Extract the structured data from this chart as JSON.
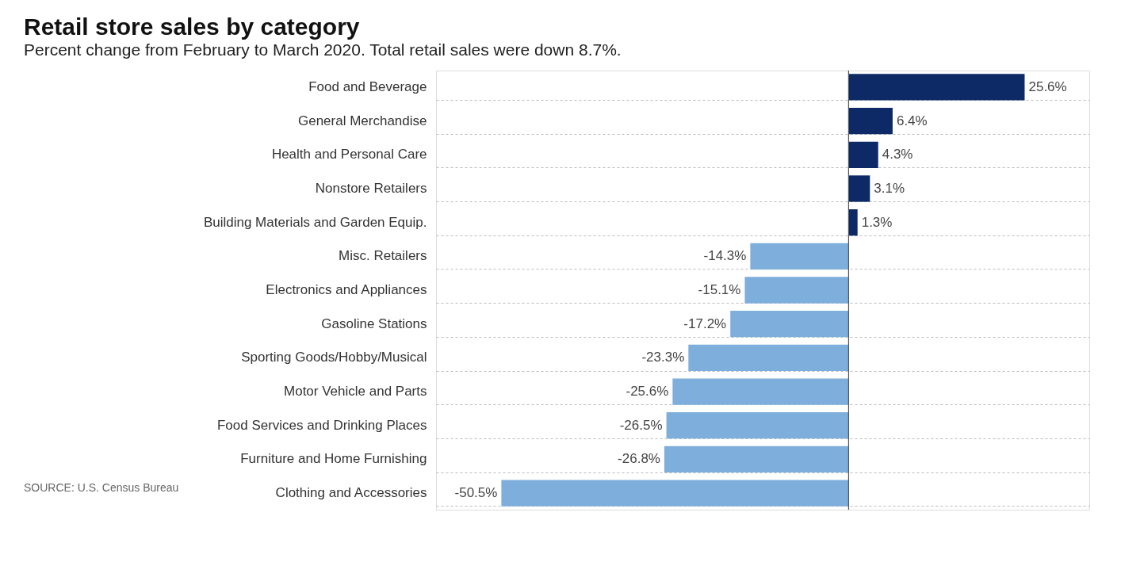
{
  "chart_data": {
    "type": "bar",
    "orientation": "horizontal",
    "title": "Retail store sales by category",
    "subtitle": "Percent change from February to March 2020. Total retail sales were down 8.7%.",
    "categories": [
      "Food and Beverage",
      "General Merchandise",
      "Health and Personal Care",
      "Nonstore Retailers",
      "Building Materials and Garden Equip.",
      "Misc. Retailers",
      "Electronics and Appliances",
      "Gasoline Stations",
      "Sporting Goods/Hobby/Musical",
      "Motor Vehicle and Parts",
      "Food Services and Drinking Places",
      "Furniture and Home Furnishing",
      "Clothing and Accessories"
    ],
    "values": [
      25.6,
      6.4,
      4.3,
      3.1,
      1.3,
      -14.3,
      -15.1,
      -17.2,
      -23.3,
      -25.6,
      -26.5,
      -26.8,
      -50.5
    ],
    "colors": [
      "#0d2a66",
      "#0d2a66",
      "#0d2a66",
      "#0d2a66",
      "#0d2a66",
      "#7eaedb",
      "#7eaedb",
      "#7eaedb",
      "#7eaedb",
      "#7eaedb",
      "#7eaedb",
      "#7eaedb",
      "#7eaedb"
    ],
    "value_labels": [
      "25.6%",
      "6.4%",
      "4.3%",
      "3.1%",
      "1.3%",
      "-14.3%",
      "-15.1%",
      "-17.2%",
      "-23.3%",
      "-25.6%",
      "-26.5%",
      "-26.8%",
      "-50.5%"
    ],
    "xlim": [
      -60,
      35
    ],
    "tick_labels": "y",
    "grid": "y",
    "annotations": [
      "SOURCE: U.S. Census Bureau"
    ]
  }
}
